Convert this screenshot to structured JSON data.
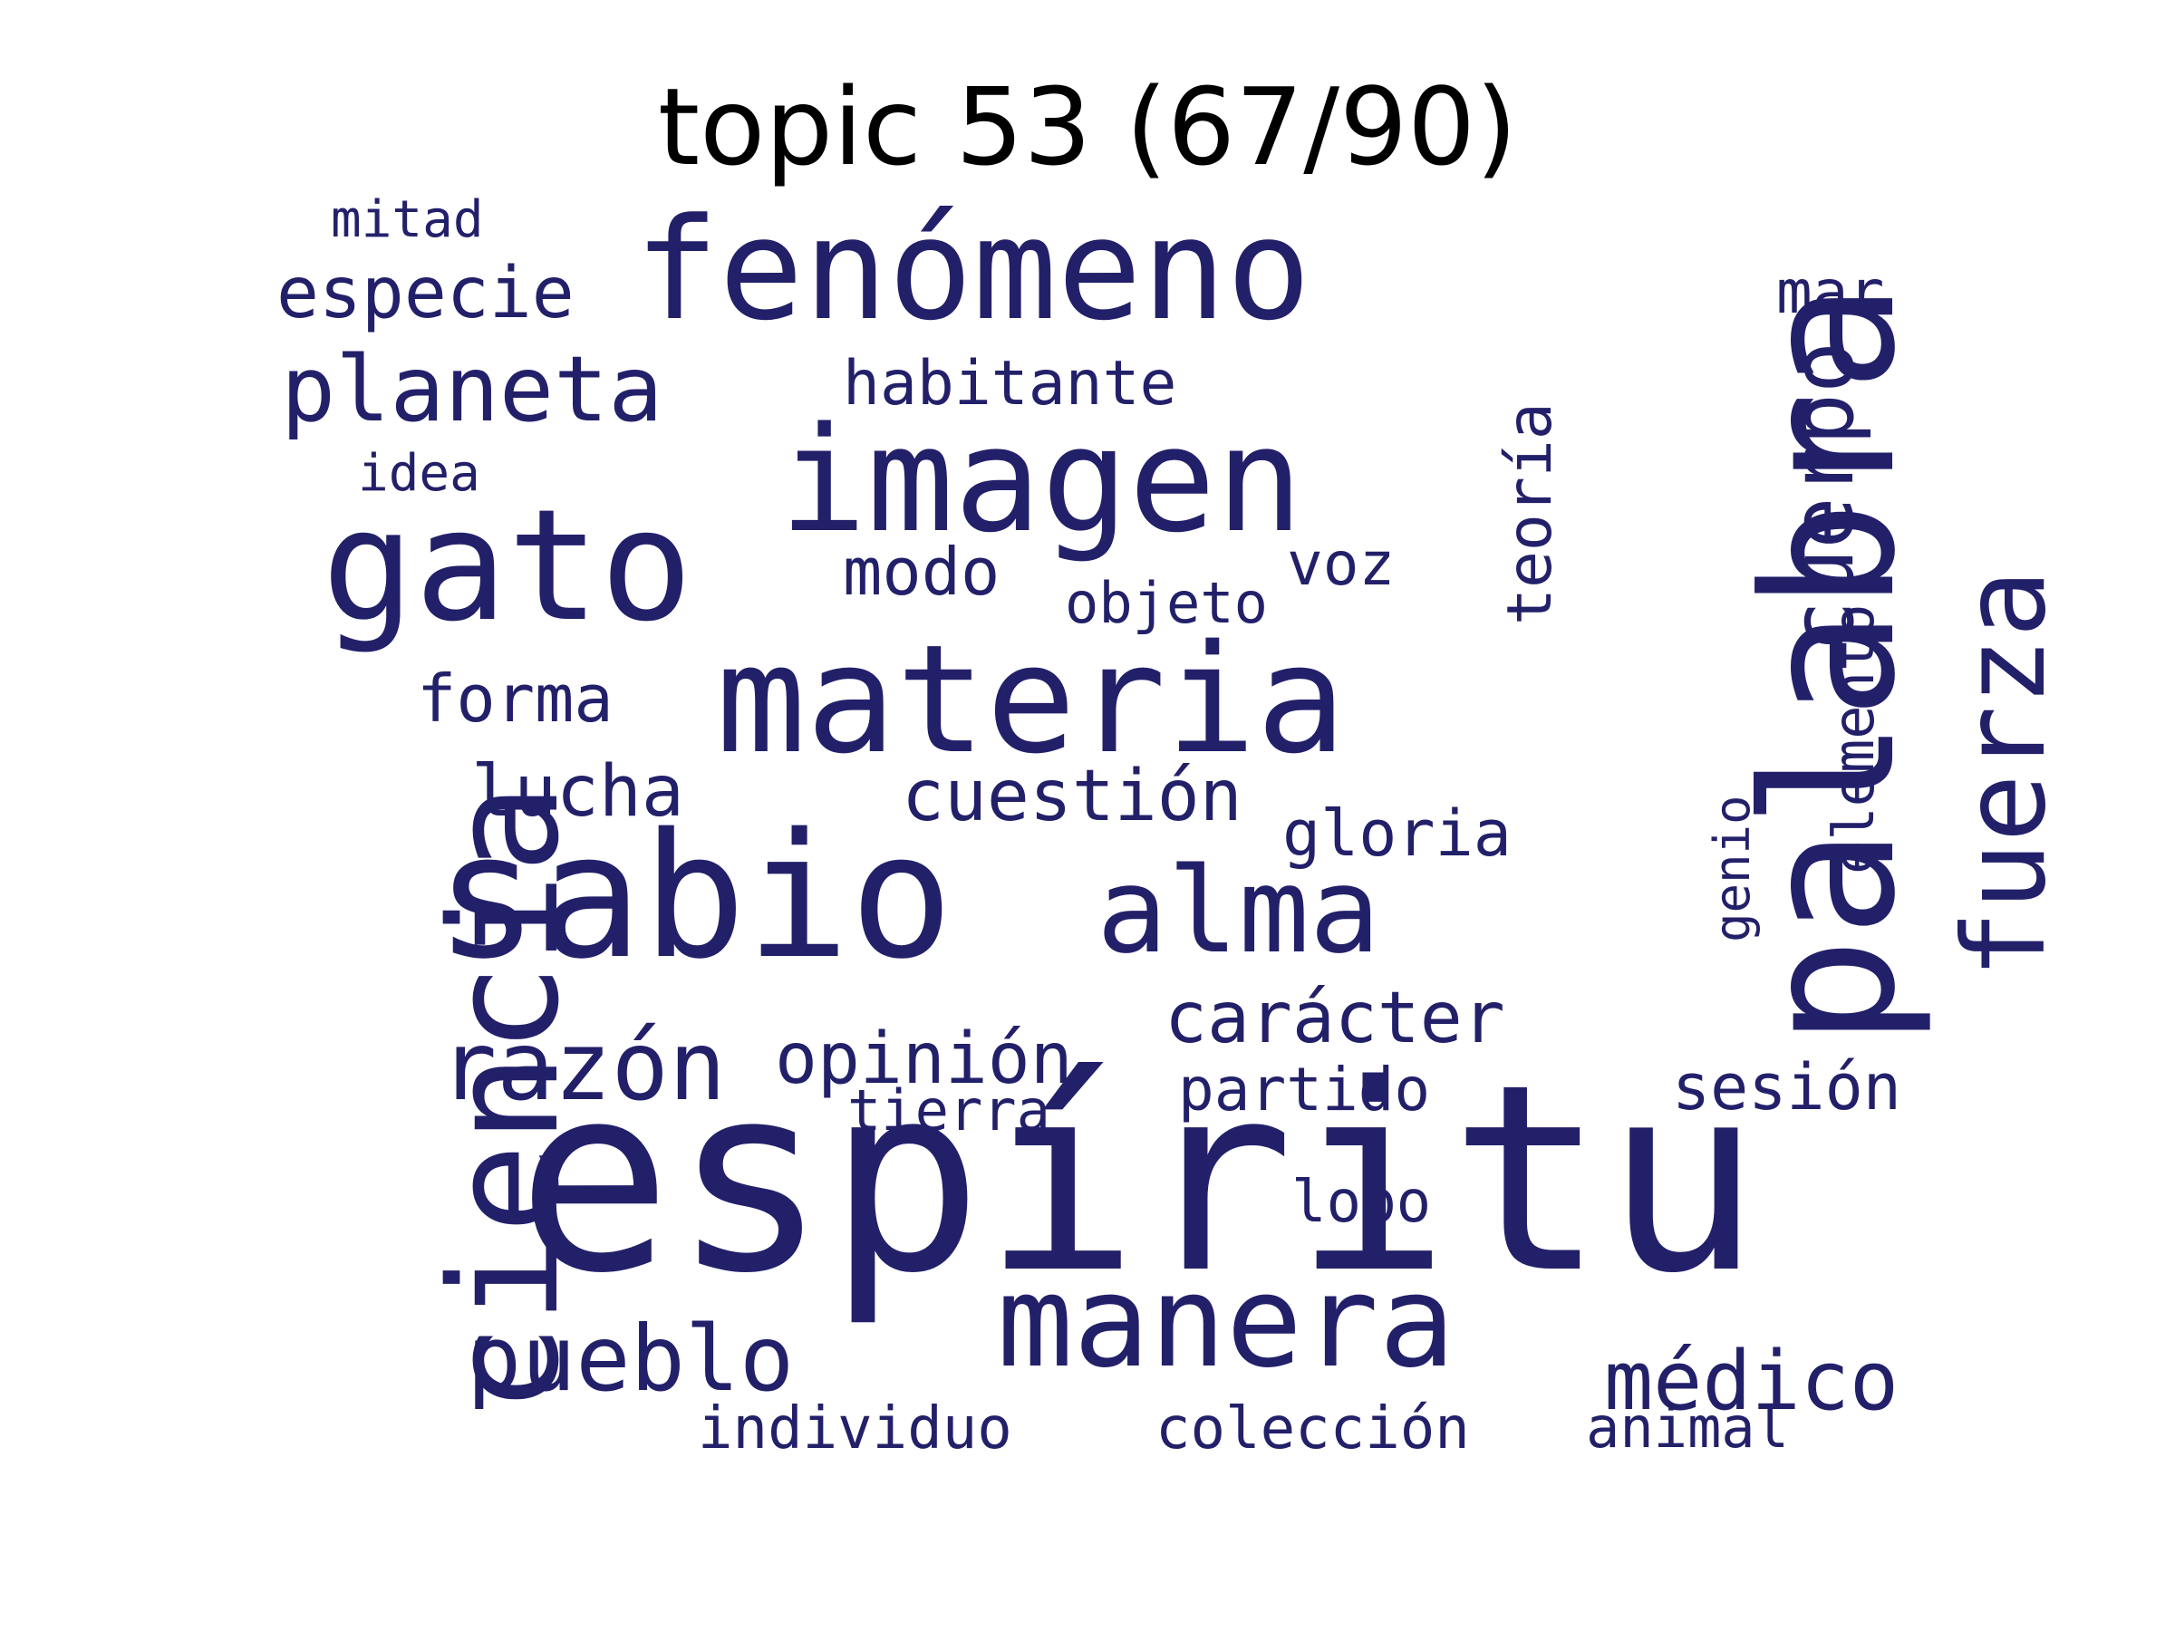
{
  "title": "topic 53 (67/90)",
  "colors": {
    "background": "#ffffff",
    "title": "#000000",
    "words": "#23206a"
  },
  "words": [
    {
      "text": "espíritu",
      "rotated": false
    },
    {
      "text": "palabra",
      "rotated": true
    },
    {
      "text": "sabio",
      "rotated": false
    },
    {
      "text": "ciencia",
      "rotated": true
    },
    {
      "text": "materia",
      "rotated": false
    },
    {
      "text": "gato",
      "rotated": false
    },
    {
      "text": "imagen",
      "rotated": false
    },
    {
      "text": "fenómeno",
      "rotated": false
    },
    {
      "text": "manera",
      "rotated": false
    },
    {
      "text": "fuerza",
      "rotated": true
    },
    {
      "text": "alma",
      "rotated": false
    },
    {
      "text": "cuerpo",
      "rotated": true
    },
    {
      "text": "razón",
      "rotated": false
    },
    {
      "text": "planeta",
      "rotated": false
    },
    {
      "text": "pueblo",
      "rotated": false
    },
    {
      "text": "médico",
      "rotated": false
    },
    {
      "text": "cuestión",
      "rotated": false
    },
    {
      "text": "carácter",
      "rotated": false
    },
    {
      "text": "lucha",
      "rotated": false
    },
    {
      "text": "opinión",
      "rotated": false
    },
    {
      "text": "especie",
      "rotated": false
    },
    {
      "text": "habitante",
      "rotated": false
    },
    {
      "text": "forma",
      "rotated": false
    },
    {
      "text": "gloria",
      "rotated": false
    },
    {
      "text": "teoría",
      "rotated": true
    },
    {
      "text": "elemento",
      "rotated": true
    },
    {
      "text": "sesión",
      "rotated": false
    },
    {
      "text": "modo",
      "rotated": false
    },
    {
      "text": "mar",
      "rotated": false
    },
    {
      "text": "voz",
      "rotated": false
    },
    {
      "text": "partido",
      "rotated": false
    },
    {
      "text": "individuo",
      "rotated": false
    },
    {
      "text": "colección",
      "rotated": false
    },
    {
      "text": "lobo",
      "rotated": false
    },
    {
      "text": "objeto",
      "rotated": false
    },
    {
      "text": "tierra",
      "rotated": false
    },
    {
      "text": "animal",
      "rotated": false
    },
    {
      "text": "genio",
      "rotated": true
    },
    {
      "text": "mitad",
      "rotated": false
    },
    {
      "text": "idea",
      "rotated": false
    }
  ]
}
